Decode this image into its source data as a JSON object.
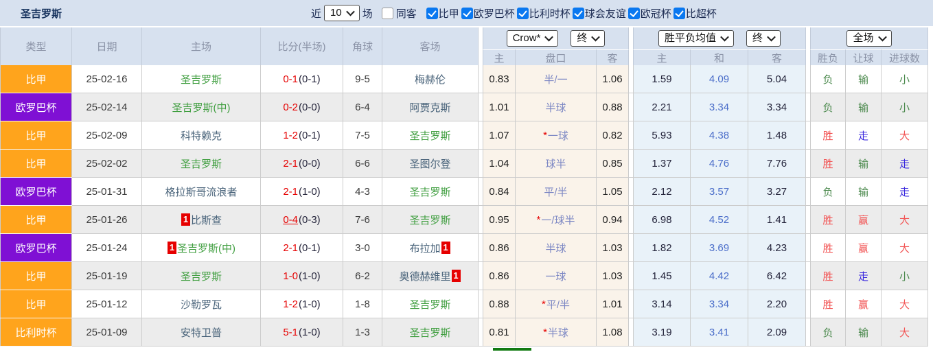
{
  "topbar": {
    "title": "圣吉罗斯",
    "recent_label": "近",
    "recent_value": "10",
    "games_label": "场",
    "same_venue_label": "同客",
    "same_venue_checked": false,
    "competitions": [
      {
        "label": "比甲",
        "checked": true
      },
      {
        "label": "欧罗巴杯",
        "checked": true
      },
      {
        "label": "比利时杯",
        "checked": true
      },
      {
        "label": "球会友谊",
        "checked": true
      },
      {
        "label": "欧冠杯",
        "checked": true
      },
      {
        "label": "比超杯",
        "checked": true
      }
    ]
  },
  "header": {
    "main_columns": [
      "类型",
      "日期",
      "主场",
      "比分(半场)",
      "角球",
      "客场"
    ],
    "dropdowns": {
      "odds_company": "Crow*",
      "odds_company_state": "终",
      "mean_odds": "胜平负均值",
      "mean_odds_state": "终",
      "result_scope": "全场"
    },
    "handicap_sub": [
      "主",
      "盘口",
      "客"
    ],
    "mean_sub": [
      "主",
      "和",
      "客"
    ],
    "result_sub": [
      "胜负",
      "让球",
      "进球数"
    ]
  },
  "result_color_map": {
    "胜": "red",
    "负": "green",
    "赢": "red",
    "输": "green",
    "走": "blue",
    "大": "red",
    "小": "green"
  },
  "colors": {
    "topbar_bg": "#d7e1ef",
    "header_bg": "#d7e1ef",
    "row_alt_bg": "#ececec",
    "type_orange": "#ffa41c",
    "type_purple": "#7f10d4",
    "handicap_bg": "#faf3ea",
    "mean_bg": "#e9f2f9",
    "score_red": "#e60000",
    "team_green": "#3f9e3f",
    "team_default": "#49637a",
    "result_red": "#f25555",
    "result_green": "#4c8a4e",
    "result_blue": "#3a28de",
    "mean_draw_blue": "#4a6dc9",
    "handicap_line_blue": "#7d88c4",
    "checkbox_blue": "#0a78f0",
    "title_navy": "#17335e",
    "scrollbar_green": "#127a12"
  },
  "rows": [
    {
      "type": "比甲",
      "comp": "orange",
      "date": "25-02-16",
      "home": {
        "name": "圣吉罗斯",
        "green": true
      },
      "score": {
        "ft": "0-1",
        "ht": "(0-1)",
        "underline": false
      },
      "corners": "9-5",
      "away": {
        "name": "梅赫伦",
        "green": false
      },
      "handicap": {
        "home": "0.83",
        "line": "半/一",
        "away": "1.06"
      },
      "mean": {
        "home": "1.59",
        "draw": "4.09",
        "away": "5.04"
      },
      "result": {
        "wdl": "负",
        "handicap": "输",
        "goals": "小"
      }
    },
    {
      "type": "欧罗巴杯",
      "comp": "purple",
      "date": "25-02-14",
      "home": {
        "name": "圣吉罗斯(中)",
        "green": true
      },
      "score": {
        "ft": "0-2",
        "ht": "(0-0)",
        "underline": false
      },
      "corners": "6-4",
      "away": {
        "name": "阿贾克斯",
        "green": false
      },
      "handicap": {
        "home": "1.01",
        "line": "半球",
        "away": "0.88"
      },
      "mean": {
        "home": "2.21",
        "draw": "3.34",
        "away": "3.34"
      },
      "result": {
        "wdl": "负",
        "handicap": "输",
        "goals": "小"
      }
    },
    {
      "type": "比甲",
      "comp": "orange",
      "date": "25-02-09",
      "home": {
        "name": "科特赖克",
        "green": false
      },
      "score": {
        "ft": "1-2",
        "ht": "(0-1)",
        "underline": false
      },
      "corners": "7-5",
      "away": {
        "name": "圣吉罗斯",
        "green": true
      },
      "handicap": {
        "home": "1.07",
        "line": "*一球",
        "away": "0.82"
      },
      "mean": {
        "home": "5.93",
        "draw": "4.38",
        "away": "1.48"
      },
      "result": {
        "wdl": "胜",
        "handicap": "走",
        "goals": "大"
      }
    },
    {
      "type": "比甲",
      "comp": "orange",
      "date": "25-02-02",
      "home": {
        "name": "圣吉罗斯",
        "green": true
      },
      "score": {
        "ft": "2-1",
        "ht": "(0-0)",
        "underline": false
      },
      "corners": "6-6",
      "away": {
        "name": "圣图尔登",
        "green": false
      },
      "handicap": {
        "home": "1.04",
        "line": "球半",
        "away": "0.85"
      },
      "mean": {
        "home": "1.37",
        "draw": "4.76",
        "away": "7.76"
      },
      "result": {
        "wdl": "胜",
        "handicap": "输",
        "goals": "走"
      }
    },
    {
      "type": "欧罗巴杯",
      "comp": "purple",
      "date": "25-01-31",
      "home": {
        "name": "格拉斯哥流浪者",
        "green": false
      },
      "score": {
        "ft": "2-1",
        "ht": "(1-0)",
        "underline": false
      },
      "corners": "4-3",
      "away": {
        "name": "圣吉罗斯",
        "green": true
      },
      "handicap": {
        "home": "0.84",
        "line": "平/半",
        "away": "1.05"
      },
      "mean": {
        "home": "2.12",
        "draw": "3.57",
        "away": "3.27"
      },
      "result": {
        "wdl": "负",
        "handicap": "输",
        "goals": "走"
      }
    },
    {
      "type": "比甲",
      "comp": "orange",
      "date": "25-01-26",
      "home": {
        "name": "比斯查",
        "green": false,
        "badge_before": "1"
      },
      "score": {
        "ft": "0-4",
        "ht": "(0-3)",
        "underline": true
      },
      "corners": "7-6",
      "away": {
        "name": "圣吉罗斯",
        "green": true
      },
      "handicap": {
        "home": "0.95",
        "line": "*一/球半",
        "away": "0.94"
      },
      "mean": {
        "home": "6.98",
        "draw": "4.52",
        "away": "1.41"
      },
      "result": {
        "wdl": "胜",
        "handicap": "赢",
        "goals": "大"
      }
    },
    {
      "type": "欧罗巴杯",
      "comp": "purple",
      "date": "25-01-24",
      "home": {
        "name": "圣吉罗斯(中)",
        "green": true,
        "badge_before": "1"
      },
      "score": {
        "ft": "2-1",
        "ht": "(0-1)",
        "underline": false
      },
      "corners": "3-0",
      "away": {
        "name": "布拉加",
        "green": false,
        "badge_after": "1"
      },
      "handicap": {
        "home": "0.86",
        "line": "半球",
        "away": "1.03"
      },
      "mean": {
        "home": "1.82",
        "draw": "3.69",
        "away": "4.23"
      },
      "result": {
        "wdl": "胜",
        "handicap": "赢",
        "goals": "大"
      }
    },
    {
      "type": "比甲",
      "comp": "orange",
      "date": "25-01-19",
      "home": {
        "name": "圣吉罗斯",
        "green": true
      },
      "score": {
        "ft": "1-0",
        "ht": "(1-0)",
        "underline": false
      },
      "corners": "6-2",
      "away": {
        "name": "奥德赫维里",
        "green": false,
        "badge_after": "1"
      },
      "handicap": {
        "home": "0.86",
        "line": "一球",
        "away": "1.03"
      },
      "mean": {
        "home": "1.45",
        "draw": "4.42",
        "away": "6.42"
      },
      "result": {
        "wdl": "胜",
        "handicap": "走",
        "goals": "小"
      }
    },
    {
      "type": "比甲",
      "comp": "orange",
      "date": "25-01-12",
      "home": {
        "name": "沙勒罗瓦",
        "green": false
      },
      "score": {
        "ft": "1-2",
        "ht": "(1-0)",
        "underline": false
      },
      "corners": "1-8",
      "away": {
        "name": "圣吉罗斯",
        "green": true
      },
      "handicap": {
        "home": "0.88",
        "line": "*平/半",
        "away": "1.01"
      },
      "mean": {
        "home": "3.14",
        "draw": "3.34",
        "away": "2.20"
      },
      "result": {
        "wdl": "胜",
        "handicap": "赢",
        "goals": "大"
      }
    },
    {
      "type": "比利时杯",
      "comp": "orange",
      "date": "25-01-09",
      "home": {
        "name": "安特卫普",
        "green": false
      },
      "score": {
        "ft": "5-1",
        "ht": "(1-0)",
        "underline": false
      },
      "corners": "1-3",
      "away": {
        "name": "圣吉罗斯",
        "green": true
      },
      "handicap": {
        "home": "0.81",
        "line": "*半球",
        "away": "1.08"
      },
      "mean": {
        "home": "3.19",
        "draw": "3.41",
        "away": "2.09"
      },
      "result": {
        "wdl": "负",
        "handicap": "输",
        "goals": "大"
      }
    }
  ]
}
